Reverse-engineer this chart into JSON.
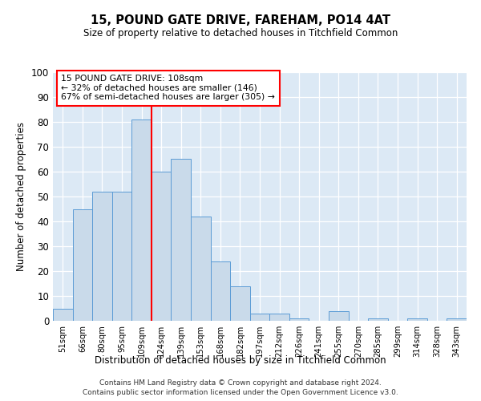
{
  "title": "15, POUND GATE DRIVE, FAREHAM, PO14 4AT",
  "subtitle": "Size of property relative to detached houses in Titchfield Common",
  "xlabel": "Distribution of detached houses by size in Titchfield Common",
  "ylabel": "Number of detached properties",
  "bins": [
    "51sqm",
    "66sqm",
    "80sqm",
    "95sqm",
    "109sqm",
    "124sqm",
    "139sqm",
    "153sqm",
    "168sqm",
    "182sqm",
    "197sqm",
    "212sqm",
    "226sqm",
    "241sqm",
    "255sqm",
    "270sqm",
    "285sqm",
    "299sqm",
    "314sqm",
    "328sqm",
    "343sqm"
  ],
  "values": [
    5,
    45,
    52,
    52,
    81,
    60,
    65,
    42,
    24,
    14,
    3,
    3,
    1,
    0,
    4,
    0,
    1,
    0,
    1,
    0,
    1
  ],
  "bar_color": "#c9daea",
  "bar_edge_color": "#5b9bd5",
  "vline_bin_index": 4,
  "vline_color": "red",
  "annotation_text": "15 POUND GATE DRIVE: 108sqm\n← 32% of detached houses are smaller (146)\n67% of semi-detached houses are larger (305) →",
  "annotation_box_color": "white",
  "annotation_box_edge": "red",
  "ylim": [
    0,
    100
  ],
  "yticks": [
    0,
    10,
    20,
    30,
    40,
    50,
    60,
    70,
    80,
    90,
    100
  ],
  "background_color": "#dce9f5",
  "footer1": "Contains HM Land Registry data © Crown copyright and database right 2024.",
  "footer2": "Contains public sector information licensed under the Open Government Licence v3.0."
}
